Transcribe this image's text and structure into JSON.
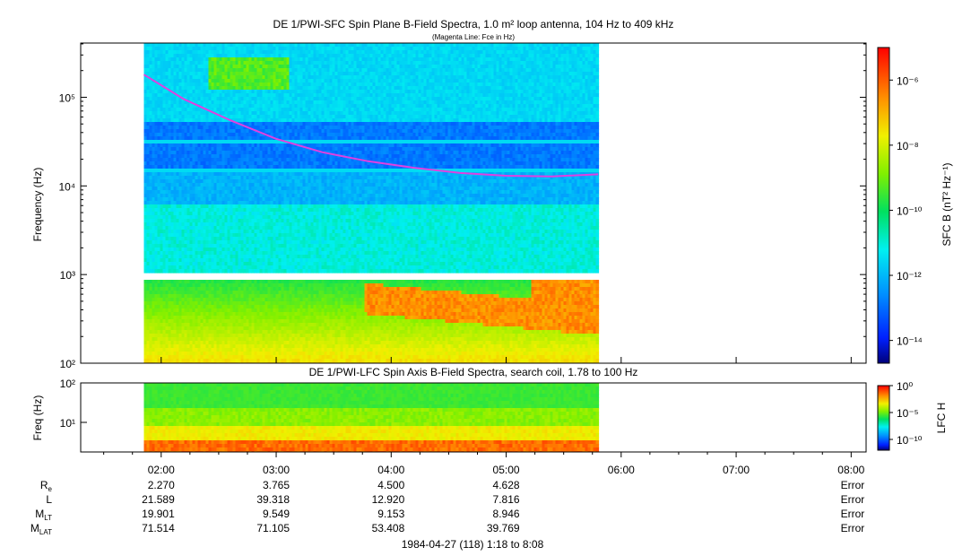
{
  "chart_data": [
    {
      "type": "heatmap",
      "title": "DE 1/PWI-SFC  Spin Plane B-Field Spectra, 1.0 m² loop antenna, 104 Hz to 409 kHz",
      "subtitle": "(Magenta Line: Fce in Hz)",
      "ylabel": "Frequency (Hz)",
      "yscale": "log",
      "ylim": [
        100,
        409000
      ],
      "yticks": [
        {
          "value": 100,
          "label": "10²"
        },
        {
          "value": 1000,
          "label": "10³"
        },
        {
          "value": 10000,
          "label": "10⁴"
        },
        {
          "value": 100000,
          "label": "10⁵"
        }
      ],
      "data_coverage_hours": [
        1.85,
        5.8
      ],
      "colorbar": {
        "label": "SFC B (nT² Hz⁻¹)",
        "scale": "log",
        "range": [
          2e-15,
          1e-05
        ],
        "ticks": [
          {
            "value": 1e-06,
            "label": "10⁻⁶"
          },
          {
            "value": 1e-08,
            "label": "10⁻⁸"
          },
          {
            "value": 1e-10,
            "label": "10⁻¹⁰"
          },
          {
            "value": 1e-12,
            "label": "10⁻¹²"
          },
          {
            "value": 1e-14,
            "label": "10⁻¹⁴"
          }
        ]
      },
      "overlay_line": {
        "color": "#e040e0",
        "x_hours": [
          1.85,
          2.2,
          2.6,
          3.0,
          3.4,
          3.8,
          4.2,
          4.6,
          5.0,
          5.4,
          5.8
        ],
        "y_hz": [
          180000,
          95000,
          55000,
          34000,
          24000,
          19000,
          16000,
          14000,
          13000,
          12800,
          13500
        ]
      }
    },
    {
      "type": "heatmap",
      "title": "DE 1/PWI-LFC  Spin Axis B-Field Spectra, search coil, 1.78 to 100 Hz",
      "ylabel": "Freq (Hz)",
      "yscale": "log",
      "ylim": [
        1.78,
        100
      ],
      "yticks": [
        {
          "value": 10,
          "label": "10¹"
        },
        {
          "value": 100,
          "label": "10²"
        }
      ],
      "data_coverage_hours": [
        1.85,
        5.8
      ],
      "colorbar": {
        "label": "LFC H",
        "scale": "log",
        "range": [
          1e-12,
          1
        ],
        "ticks": [
          {
            "value": 1,
            "label": "10⁰"
          },
          {
            "value": 1e-05,
            "label": "10⁻⁵"
          },
          {
            "value": 1e-10,
            "label": "10⁻¹⁰"
          }
        ]
      },
      "xticks": [
        "02:00",
        "03:00",
        "04:00",
        "05:00",
        "06:00",
        "07:00",
        "08:00"
      ],
      "xlim_hours": [
        1.3,
        8.13
      ]
    }
  ],
  "ephemeris": {
    "labels": [
      {
        "main": "R",
        "sub": "e"
      },
      {
        "main": "L",
        "sub": ""
      },
      {
        "main": "M",
        "sub": "LT"
      },
      {
        "main": "M",
        "sub": "LAT"
      }
    ],
    "columns": [
      {
        "hour": 2,
        "values": [
          "2.270",
          "21.589",
          "19.901",
          "71.514"
        ]
      },
      {
        "hour": 3,
        "values": [
          "3.765",
          "39.318",
          "9.549",
          "71.105"
        ]
      },
      {
        "hour": 4,
        "values": [
          "4.500",
          "12.920",
          "9.153",
          "53.408"
        ]
      },
      {
        "hour": 5,
        "values": [
          "4.628",
          "7.816",
          "8.946",
          "39.769"
        ]
      },
      {
        "hour": 8,
        "values": [
          "Error",
          "Error",
          "Error",
          "Error"
        ]
      }
    ]
  },
  "footer": "1984-04-27 (118) 1:18 to 8:08"
}
